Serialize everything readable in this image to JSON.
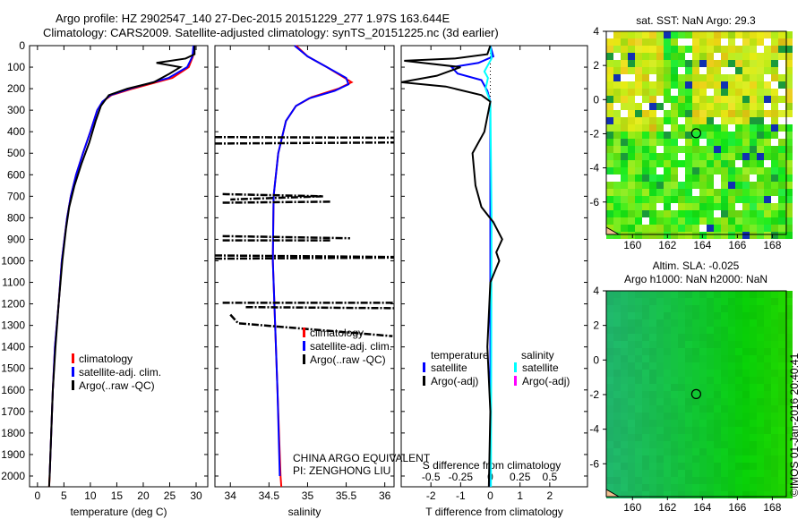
{
  "title_line1": "Argo profile: HZ 2902547_140 27-Dec-2015 20151229_277 1.97S 163.644E",
  "title_line2": "Climatology: CARS2009. Satellite-adjusted climatology: synTS_20151225.nc (3d earlier)",
  "footer_credit": "©IMOS 01-Jan-2016 20:40:41",
  "colors": {
    "climatology": "#ff0000",
    "satellite": "#0000ff",
    "argo": "#000000",
    "sal_satellite": "#00ffff",
    "sal_argo": "#ff00ff"
  },
  "chart_data": [
    {
      "type": "line",
      "name": "temperature",
      "xlabel": "temperature (deg C)",
      "xlim": [
        -1.5,
        32.2
      ],
      "ylim": [
        0,
        2050
      ],
      "xticks": [
        "0",
        "5",
        "10",
        "15",
        "20",
        "25",
        "30"
      ],
      "xtickvals": [
        0,
        5,
        10,
        15,
        20,
        25,
        30
      ],
      "yticks": [
        "0",
        "100",
        "200",
        "300",
        "400",
        "500",
        "600",
        "700",
        "800",
        "900",
        "1000",
        "1100",
        "1200",
        "1300",
        "1400",
        "1500",
        "1600",
        "1700",
        "1800",
        "1900",
        "2000"
      ],
      "legend": [
        "climatology",
        "satellite-adj. clim.",
        "Argo(..raw -QC)"
      ],
      "series": [
        {
          "name": "climatology",
          "color": "#ff0000",
          "points": [
            [
              29.5,
              0
            ],
            [
              29.4,
              50
            ],
            [
              28.6,
              100
            ],
            [
              25.5,
              150
            ],
            [
              18,
              200
            ],
            [
              14,
              230
            ],
            [
              12.3,
              260
            ],
            [
              11.3,
              300
            ],
            [
              10,
              400
            ],
            [
              8.6,
              500
            ],
            [
              7.3,
              600
            ],
            [
              6.3,
              700
            ],
            [
              5.6,
              800
            ],
            [
              4.6,
              1000
            ],
            [
              4,
              1200
            ],
            [
              3.3,
              1400
            ],
            [
              2.9,
              1600
            ],
            [
              2.6,
              1800
            ],
            [
              2.3,
              2000
            ],
            [
              2.2,
              2050
            ]
          ]
        },
        {
          "name": "satellite-adj. clim.",
          "color": "#0000ff",
          "points": [
            [
              29.5,
              0
            ],
            [
              29.3,
              50
            ],
            [
              28.3,
              100
            ],
            [
              24.8,
              150
            ],
            [
              17.5,
              200
            ],
            [
              13.8,
              230
            ],
            [
              12.3,
              260
            ],
            [
              11.3,
              300
            ],
            [
              10,
              400
            ],
            [
              8.6,
              500
            ],
            [
              7.3,
              600
            ],
            [
              6.3,
              700
            ],
            [
              5.6,
              800
            ],
            [
              4.6,
              1000
            ],
            [
              4,
              1200
            ],
            [
              3.3,
              1400
            ],
            [
              2.9,
              1600
            ],
            [
              2.6,
              1800
            ],
            [
              2.3,
              2000
            ]
          ]
        },
        {
          "name": "Argo(..raw -QC)",
          "color": "#000000",
          "points": [
            [
              29.7,
              0
            ],
            [
              29.7,
              40
            ],
            [
              28,
              60
            ],
            [
              22.5,
              80
            ],
            [
              27,
              100
            ],
            [
              25,
              130
            ],
            [
              22,
              170
            ],
            [
              17,
              200
            ],
            [
              13.5,
              230
            ],
            [
              12,
              280
            ],
            [
              11,
              350
            ],
            [
              9.8,
              450
            ],
            [
              8.3,
              550
            ],
            [
              7,
              650
            ],
            [
              6,
              750
            ],
            [
              5.4,
              850
            ],
            [
              4.7,
              1000
            ],
            [
              4,
              1200
            ],
            [
              3.4,
              1400
            ],
            [
              2.9,
              1600
            ],
            [
              2.6,
              1800
            ],
            [
              2.3,
              2000
            ],
            [
              2.2,
              2050
            ]
          ]
        }
      ]
    },
    {
      "type": "line",
      "name": "salinity",
      "xlabel": "salinity",
      "xlim": [
        33.8,
        36.12
      ],
      "ylim": [
        0,
        2050
      ],
      "xticks": [
        "34",
        "34.5",
        "35",
        "35.5",
        "36"
      ],
      "xtickvals": [
        34,
        34.5,
        35,
        35.5,
        36
      ],
      "legend": [
        "climatology",
        "satellite-adj. clim.",
        "Argo(..raw -QC)"
      ],
      "annotation": [
        "CHINA ARGO EQUIVALENT",
        "PI: ZENGHONG LIU"
      ],
      "series": [
        {
          "name": "climatology",
          "color": "#ff0000",
          "points": [
            [
              34.85,
              0
            ],
            [
              35.0,
              50
            ],
            [
              35.25,
              100
            ],
            [
              35.48,
              150
            ],
            [
              35.57,
              170
            ],
            [
              35.4,
              200
            ],
            [
              35.05,
              240
            ],
            [
              34.85,
              280
            ],
            [
              34.72,
              350
            ],
            [
              34.62,
              500
            ],
            [
              34.56,
              700
            ],
            [
              34.55,
              1000
            ],
            [
              34.58,
              1300
            ],
            [
              34.61,
              1600
            ],
            [
              34.65,
              2000
            ],
            [
              34.66,
              2050
            ]
          ]
        },
        {
          "name": "satellite-adj. clim.",
          "color": "#0000ff",
          "points": [
            [
              34.83,
              0
            ],
            [
              35.0,
              50
            ],
            [
              35.25,
              100
            ],
            [
              35.5,
              150
            ],
            [
              35.53,
              180
            ],
            [
              35.35,
              210
            ],
            [
              35.02,
              245
            ],
            [
              34.85,
              280
            ],
            [
              34.72,
              350
            ],
            [
              34.62,
              500
            ],
            [
              34.56,
              700
            ],
            [
              34.55,
              1000
            ],
            [
              34.58,
              1300
            ],
            [
              34.61,
              1600
            ],
            [
              34.64,
              2000
            ]
          ]
        },
        {
          "name": "Argo(..raw -QC)",
          "color": "#000000",
          "segments": [
            [
              [
                33.8,
                425
              ],
              [
                36.12,
                428
              ]
            ],
            [
              [
                33.8,
                455
              ],
              [
                36.12,
                450
              ]
            ],
            [
              [
                33.9,
                690
              ],
              [
                35.2,
                700
              ],
              [
                34.0,
                715
              ]
            ],
            [
              [
                33.9,
                730
              ],
              [
                35.3,
                725
              ]
            ],
            [
              [
                33.9,
                885
              ],
              [
                35.55,
                895
              ]
            ],
            [
              [
                33.9,
                905
              ],
              [
                35.3,
                905
              ]
            ],
            [
              [
                33.8,
                975
              ],
              [
                36.12,
                982
              ]
            ],
            [
              [
                33.8,
                990
              ],
              [
                36.12,
                985
              ]
            ],
            [
              [
                33.9,
                1195
              ],
              [
                36.12,
                1195
              ]
            ],
            [
              [
                34.2,
                1215
              ],
              [
                36.12,
                1220
              ]
            ],
            [
              [
                34.0,
                1250
              ],
              [
                34.1,
                1290
              ],
              [
                36.1,
                1350
              ]
            ]
          ]
        }
      ]
    },
    {
      "type": "line",
      "name": "difference",
      "xlabel": "T difference from climatology",
      "xlabel2": "S difference from climatology",
      "xlim": [
        -3,
        3.27
      ],
      "ylim": [
        0,
        2050
      ],
      "xticks": [
        "-2",
        "-1",
        "0",
        "1",
        "2"
      ],
      "xtickvals": [
        -2,
        -1,
        0,
        1,
        2
      ],
      "sticks": [
        "-0.5",
        "-0.25",
        "0",
        "0.25",
        "0.5"
      ],
      "stickvals": [
        -0.5,
        -0.25,
        0,
        0.25,
        0.5
      ],
      "legend_t_title": "temperature",
      "legend_s_title": "salinity",
      "legend": [
        "satellite",
        "Argo(-adj)",
        "satellite",
        "Argo(-adj)"
      ],
      "series": [
        {
          "name": "T satellite",
          "color": "#0000ff",
          "points": [
            [
              0,
              0
            ],
            [
              0.1,
              50
            ],
            [
              -0.4,
              80
            ],
            [
              -1.3,
              100
            ],
            [
              -1.1,
              130
            ],
            [
              -0.3,
              160
            ],
            [
              -0.1,
              210
            ],
            [
              0,
              260
            ],
            [
              0,
              2050
            ]
          ]
        },
        {
          "name": "S satellite",
          "color": "#00ffff",
          "s_units": true,
          "points": [
            [
              0,
              0
            ],
            [
              0.01,
              60
            ],
            [
              -0.05,
              120
            ],
            [
              -0.02,
              150
            ],
            [
              -0.04,
              200
            ],
            [
              0,
              260
            ],
            [
              0.01,
              800
            ],
            [
              0.005,
              2050
            ]
          ]
        },
        {
          "name": "T Argo",
          "color": "#000000",
          "points": [
            [
              0,
              0
            ],
            [
              -0.1,
              40
            ],
            [
              -1.2,
              60
            ],
            [
              -2.9,
              70
            ],
            [
              -1.0,
              100
            ],
            [
              -1.8,
              140
            ],
            [
              -3.0,
              170
            ],
            [
              -1.5,
              190
            ],
            [
              -0.3,
              230
            ],
            [
              0,
              260
            ],
            [
              -0.2,
              400
            ],
            [
              -0.6,
              500
            ],
            [
              -0.5,
              650
            ],
            [
              -0.3,
              750
            ],
            [
              0.1,
              820
            ],
            [
              0.4,
              900
            ],
            [
              0.2,
              960
            ],
            [
              0.3,
              1000
            ],
            [
              0,
              1100
            ],
            [
              -0.1,
              1400
            ],
            [
              0,
              1700
            ],
            [
              -0.05,
              2050
            ]
          ]
        }
      ]
    },
    {
      "type": "heatmap",
      "name": "sst-map",
      "title": "sat. SST: NaN Argo: 29.3",
      "xlim": [
        158.5,
        168.8
      ],
      "ylim": [
        -7.9,
        4
      ],
      "xticks": [
        "160",
        "162",
        "164",
        "166",
        "168"
      ],
      "yticks": [
        "4",
        "2",
        "0",
        "-2",
        "-4",
        "-6"
      ],
      "marker": [
        163.644,
        -1.97
      ]
    },
    {
      "type": "heatmap",
      "name": "sla-map",
      "title": "Altim. SLA: -0.025",
      "subtitle": "Argo h1000: NaN h2000: NaN",
      "xlim": [
        158.5,
        168.8
      ],
      "ylim": [
        -7.9,
        4
      ],
      "xticks": [
        "160",
        "162",
        "164",
        "166",
        "168"
      ],
      "yticks": [
        "4",
        "2",
        "0",
        "-2",
        "-4",
        "-6"
      ],
      "marker": [
        163.644,
        -1.97
      ]
    }
  ]
}
